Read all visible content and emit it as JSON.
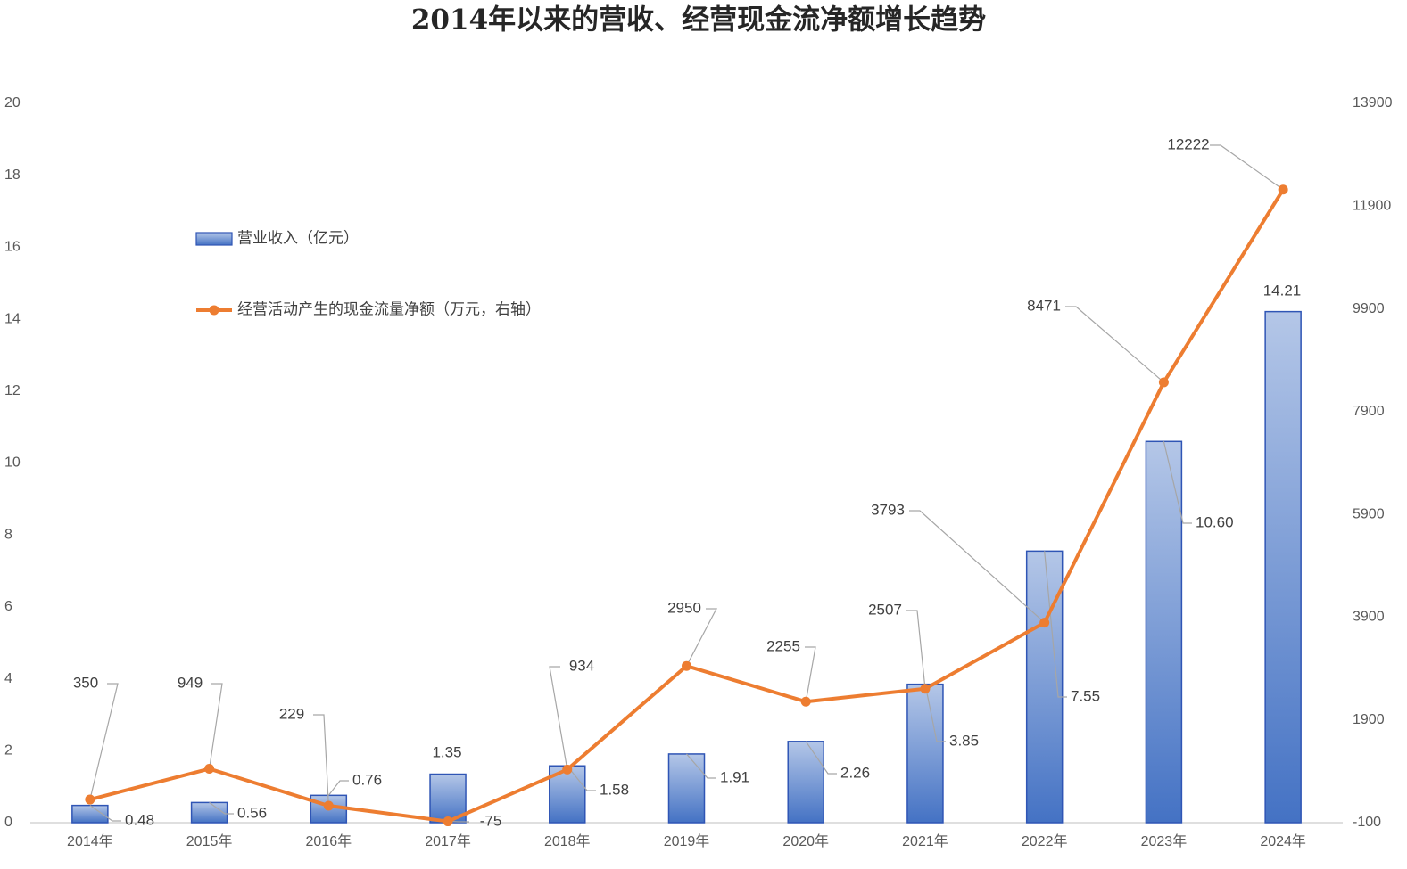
{
  "chart_data": {
    "type": "bar+line",
    "title": "2014年以来的营收、经营现金流净额增长趋势",
    "categories": [
      "2014年",
      "2015年",
      "2016年",
      "2017年",
      "2018年",
      "2019年",
      "2020年",
      "2021年",
      "2022年",
      "2023年",
      "2024年"
    ],
    "series": [
      {
        "name": "营业收入（亿元）",
        "type": "bar",
        "color": "#4472c4",
        "values": [
          0.48,
          0.56,
          0.76,
          1.35,
          1.58,
          1.91,
          2.26,
          3.85,
          7.55,
          10.6,
          14.21
        ],
        "value_labels": [
          "0.48",
          "0.56",
          "0.76",
          "1.35",
          "1.58",
          "1.91",
          "2.26",
          "3.85",
          "7.55",
          "10.60",
          "14.21"
        ]
      },
      {
        "name": "经营活动产生的现金流量净额（万元，右轴）",
        "type": "line",
        "axis": "y2",
        "color": "#ed7d31",
        "values": [
          350,
          949,
          229,
          -75,
          934,
          2950,
          2255,
          2507,
          3793,
          8471,
          12222
        ]
      }
    ],
    "ylim": [
      0,
      20
    ],
    "yticks": [
      0,
      2,
      4,
      6,
      8,
      10,
      12,
      14,
      16,
      18,
      20
    ],
    "y2lim": [
      -100,
      13900
    ],
    "y2ticks": [
      -100,
      1900,
      3900,
      5900,
      7900,
      9900,
      11900,
      13900
    ]
  }
}
